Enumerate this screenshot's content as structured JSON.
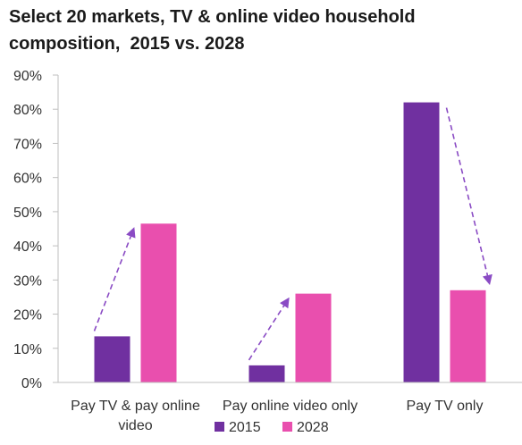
{
  "title_lines": [
    "Select 20 markets, TV & online video household",
    "composition,  2015 vs. 2028"
  ],
  "chart_data": {
    "type": "bar",
    "title": "Select 20 markets, TV & online video household composition,  2015 vs. 2028",
    "categories": [
      [
        "Pay TV & pay online",
        "video"
      ],
      [
        "Pay online video only"
      ],
      [
        "Pay TV only"
      ]
    ],
    "series": [
      {
        "name": "2015",
        "values": [
          13.5,
          5,
          82
        ],
        "color": "#7030A0"
      },
      {
        "name": "2028",
        "values": [
          46.5,
          26,
          27
        ],
        "color": "#E94FAE"
      }
    ],
    "ylim": [
      0,
      90
    ],
    "yticks": [
      "0%",
      "10%",
      "20%",
      "30%",
      "40%",
      "50%",
      "60%",
      "70%",
      "80%",
      "90%"
    ],
    "legend_position": "bottom",
    "grid": false,
    "annotations": "dashed arrows from 2015 bar to 2028 bar in each category",
    "arrow_color": "#8A4BC4"
  }
}
